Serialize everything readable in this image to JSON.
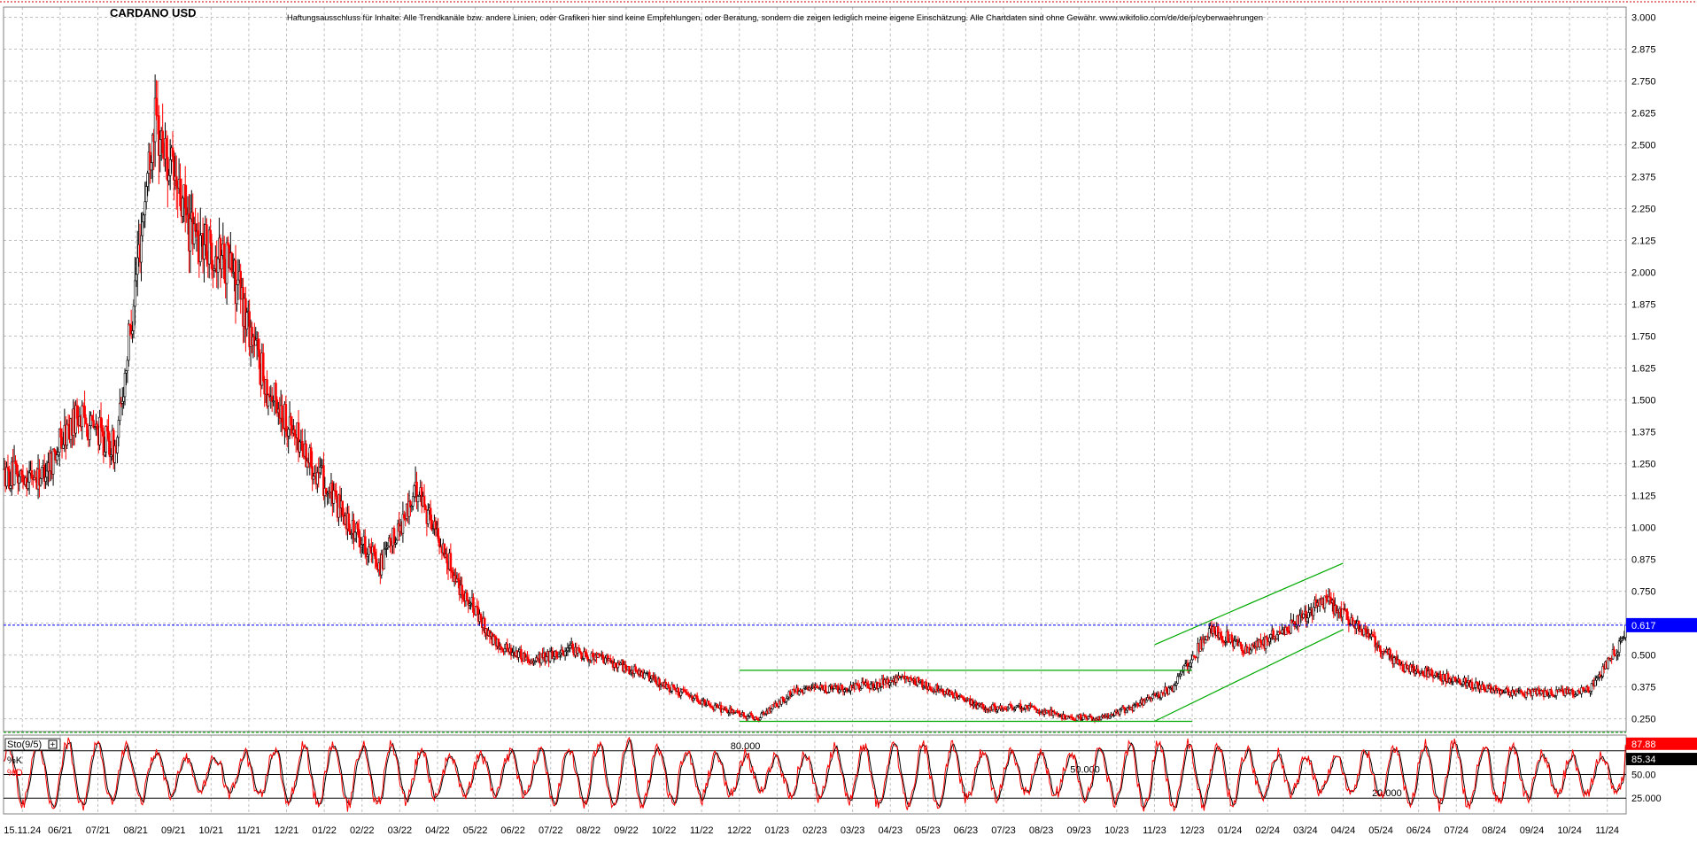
{
  "title": "CARDANO USD",
  "disclaimer": "Haftungsausschluss für Inhalte: Alle Trendkanäle bzw. andere Linien, oder Grafiken hier sind keine Empfehlungen, oder Beratung, sondern die zeigen lediglich meine eigene Einschätzung. Alle Chartdaten sind ohne Gewähr. www.wikifolio.com/de/de/p/cyberwaehrungen",
  "colors": {
    "up": "#000000",
    "down": "#ff0000",
    "trendline": "#00aa00",
    "price_line": "#0000ff",
    "price_badge": "#0000ff",
    "k_badge": "#ff0000",
    "d_badge": "#000000",
    "grid": "#c0c0c0"
  },
  "chart_data": [
    {
      "type": "candlestick",
      "title": "CARDANO USD",
      "ylim": [
        0.2,
        3.04
      ],
      "y_ticks": [
        "3.000",
        "2.875",
        "2.750",
        "2.625",
        "2.500",
        "2.375",
        "2.250",
        "2.125",
        "2.000",
        "1.875",
        "1.750",
        "1.625",
        "1.500",
        "1.375",
        "1.250",
        "1.125",
        "1.000",
        "0.875",
        "0.750",
        "0.625",
        "0.500",
        "0.375",
        "0.250"
      ],
      "last_price": 0.617,
      "last_price_label": "0.617",
      "x_ticks": [
        "15.11.24",
        "06/21",
        "07/21",
        "08/21",
        "09/21",
        "10/21",
        "11/21",
        "12/21",
        "01/22",
        "02/22",
        "03/22",
        "04/22",
        "05/22",
        "06/22",
        "07/22",
        "08/22",
        "09/22",
        "10/22",
        "11/22",
        "12/22",
        "01/23",
        "02/23",
        "03/23",
        "04/23",
        "05/23",
        "06/23",
        "07/23",
        "08/23",
        "09/23",
        "10/23",
        "11/23",
        "12/23",
        "01/24",
        "02/24",
        "03/24",
        "04/24",
        "05/24",
        "06/24",
        "07/24",
        "08/24",
        "09/24",
        "10/24",
        "11/24"
      ],
      "grid": true,
      "series": [
        {
          "monthly_close": [
            1.2,
            1.45,
            1.3,
            2.6,
            2.15,
            2.05,
            1.55,
            1.3,
            1.05,
            0.85,
            1.15,
            0.8,
            0.55,
            0.48,
            0.52,
            0.48,
            0.42,
            0.35,
            0.29,
            0.25,
            0.36,
            0.37,
            0.38,
            0.41,
            0.35,
            0.29,
            0.3,
            0.26,
            0.25,
            0.3,
            0.37,
            0.6,
            0.52,
            0.6,
            0.72,
            0.6,
            0.46,
            0.42,
            0.38,
            0.35,
            0.35,
            0.36,
            0.57
          ]
        }
      ],
      "trendlines": [
        {
          "label": "resistance",
          "from": [
            "12/22",
            0.44
          ],
          "to": [
            "12/23",
            0.44
          ]
        },
        {
          "label": "support",
          "from": [
            "12/22",
            0.24
          ],
          "to": [
            "12/23",
            0.24
          ]
        },
        {
          "label": "channel upper",
          "from": [
            "11/23",
            0.54
          ],
          "to": [
            "04/24",
            0.86
          ]
        },
        {
          "label": "channel lower",
          "from": [
            "11/23",
            0.24
          ],
          "to": [
            "04/24",
            0.6
          ]
        }
      ]
    },
    {
      "type": "line",
      "title": "Sto(9/5)",
      "ylim": [
        0,
        100
      ],
      "reference_lines": [
        {
          "value": 80,
          "label": "80.000"
        },
        {
          "value": 50,
          "label": "50.000"
        },
        {
          "value": 20,
          "label": "20.000"
        }
      ],
      "y_ticks": [
        "50.00",
        "25.000"
      ],
      "series": [
        {
          "name": "%K",
          "last": 87.88,
          "last_label": "87.88",
          "color": "#ff0000"
        },
        {
          "name": "%D",
          "last": 85.34,
          "last_label": "85.34",
          "color": "#000000"
        }
      ]
    }
  ]
}
